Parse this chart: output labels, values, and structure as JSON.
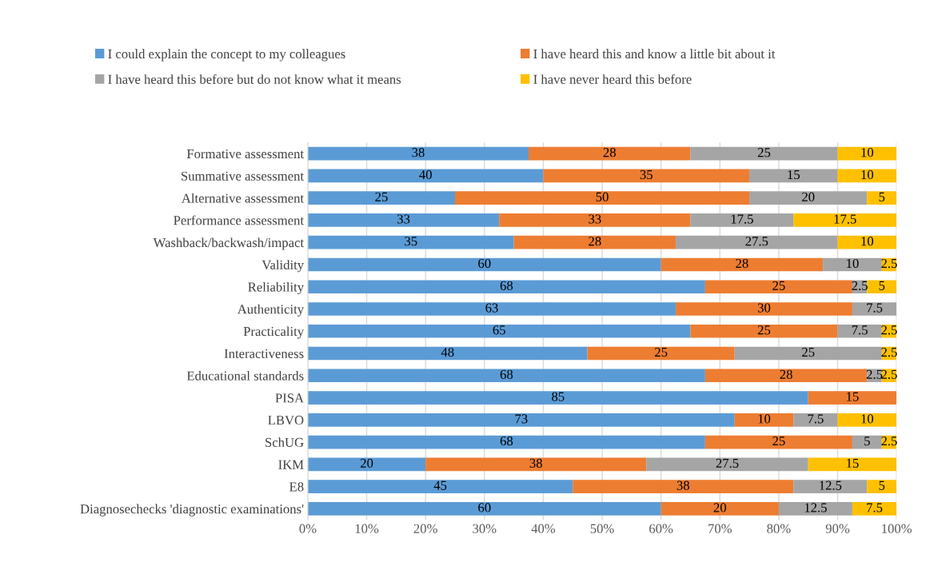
{
  "chart_data": {
    "type": "bar",
    "orientation": "horizontal",
    "stacked": true,
    "categories": [
      "Formative assessment",
      "Summative assessment",
      "Alternative assessment",
      "Performance assessment",
      "Washback/backwash/impact",
      "Validity",
      "Reliability",
      "Authenticity",
      "Practicality",
      "Interactiveness",
      "Educational standards",
      "PISA",
      "LBVO",
      "SchUG",
      "IKM",
      "E8",
      "Diagnosechecks 'diagnostic examinations'"
    ],
    "series": [
      {
        "name": "I could explain the concept to my colleagues",
        "color": "#5b9bd5",
        "values": [
          37.5,
          40,
          25,
          32.5,
          35,
          60,
          67.5,
          62.5,
          65,
          47.5,
          67.5,
          85,
          72.5,
          67.5,
          20,
          45,
          60
        ],
        "value_labels": [
          "38",
          "40",
          "25",
          "33",
          "35",
          "60",
          "68",
          "63",
          "65",
          "48",
          "68",
          "85",
          "73",
          "68",
          "20",
          "45",
          "60"
        ]
      },
      {
        "name": "I have heard this and know a little bit about it",
        "color": "#ed7d31",
        "values": [
          27.5,
          35,
          50,
          32.5,
          27.5,
          27.5,
          25,
          30,
          25,
          25,
          27.5,
          15,
          10,
          25,
          37.5,
          37.5,
          20
        ],
        "value_labels": [
          "28",
          "35",
          "50",
          "33",
          "28",
          "28",
          "25",
          "30",
          "25",
          "25",
          "28",
          "15",
          "10",
          "25",
          "38",
          "38",
          "20"
        ]
      },
      {
        "name": "I have heard this before but do not know what it means",
        "color": "#a5a5a5",
        "values": [
          25,
          15,
          20,
          17.5,
          27.5,
          10,
          2.5,
          7.5,
          7.5,
          25,
          2.5,
          null,
          7.5,
          5,
          27.5,
          12.5,
          12.5
        ],
        "value_labels": [
          "25",
          "15",
          "20",
          "17.5",
          "27.5",
          "10",
          "2.5",
          "7.5",
          "7.5",
          "25",
          "2.5",
          null,
          "7.5",
          "5",
          "27.5",
          "12.5",
          "12.5"
        ]
      },
      {
        "name": "I have never heard this before",
        "color": "#ffc000",
        "values": [
          10,
          10,
          5,
          17.5,
          10,
          2.5,
          5,
          null,
          2.5,
          2.5,
          2.5,
          null,
          10,
          2.5,
          15,
          5,
          7.5
        ],
        "value_labels": [
          "10",
          "10",
          "5",
          "17.5",
          "10",
          "2.5",
          "5",
          null,
          "2.5",
          "2.5",
          "2.5",
          null,
          "10",
          "2.5",
          "15",
          "5",
          "7.5"
        ]
      }
    ],
    "xlim": [
      0,
      100
    ],
    "xticks": [
      {
        "value": 0,
        "label": "0%"
      },
      {
        "value": 10,
        "label": "10%"
      },
      {
        "value": 20,
        "label": "20%"
      },
      {
        "value": 30,
        "label": "30%"
      },
      {
        "value": 40,
        "label": "40%"
      },
      {
        "value": 50,
        "label": "50%"
      },
      {
        "value": 60,
        "label": "60%"
      },
      {
        "value": 70,
        "label": "70%"
      },
      {
        "value": 80,
        "label": "80%"
      },
      {
        "value": 90,
        "label": "90%"
      },
      {
        "value": 100,
        "label": "100%"
      }
    ],
    "grid": "x",
    "legend": "top"
  }
}
